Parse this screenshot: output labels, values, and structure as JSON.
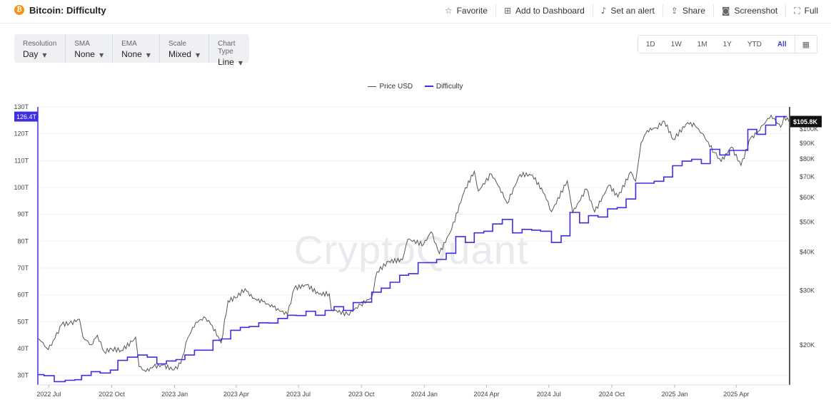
{
  "header": {
    "brand_icon": "bitcoin-icon",
    "brand_glyph": "₿",
    "title": "Bitcoin: Difficulty",
    "actions": [
      {
        "icon": "star-icon",
        "glyph": "☆",
        "label": "Favorite"
      },
      {
        "icon": "dashboard-add-icon",
        "glyph": "⊞",
        "label": "Add to Dashboard"
      },
      {
        "icon": "bell-icon",
        "glyph": "♪",
        "label": "Set an alert"
      },
      {
        "icon": "share-icon",
        "glyph": "⇪",
        "label": "Share"
      },
      {
        "icon": "camera-icon",
        "glyph": "◙",
        "label": "Screenshot"
      },
      {
        "icon": "fullscreen-icon",
        "glyph": "⛶",
        "label": "Full"
      }
    ]
  },
  "controls": [
    {
      "label": "Resolution",
      "value": "Day"
    },
    {
      "label": "SMA",
      "value": "None"
    },
    {
      "label": "EMA",
      "value": "None"
    },
    {
      "label": "Scale",
      "value": "Mixed"
    },
    {
      "label": "Chart Type",
      "value": "Line"
    }
  ],
  "ranges": {
    "items": [
      "1D",
      "1W",
      "1M",
      "1Y",
      "YTD",
      "All"
    ],
    "active": "All",
    "calendar_icon": "calendar-icon"
  },
  "watermark": "CryptoQuant",
  "colors": {
    "price": "#555555",
    "difficulty": "#3d2fe0",
    "badge": "#3d2fe0"
  },
  "chart_data": {
    "type": "line",
    "legend": [
      "Price USD",
      "Difficulty"
    ],
    "legend_position": "top-center",
    "x_ticks": [
      "2022 Jul",
      "2022 Oct",
      "2023 Jan",
      "2023 Apr",
      "2023 Jul",
      "2023 Oct",
      "2024 Jan",
      "2024 Apr",
      "2024 Jul",
      "2024 Oct",
      "2025 Jan",
      "2025 Apr"
    ],
    "x_range": [
      "2022-06-15",
      "2025-06-17"
    ],
    "left_axis": {
      "ticks": [
        "30T",
        "40T",
        "50T",
        "60T",
        "70T",
        "80T",
        "90T",
        "100T",
        "110T",
        "120T",
        "130T"
      ],
      "ylim": [
        27,
        130
      ],
      "unit": "T",
      "current_value_label": "126.4T"
    },
    "right_axis": {
      "scale": "log",
      "ticks": [
        "$20K",
        "$30K",
        "$40K",
        "$50K",
        "$60K",
        "$70K",
        "$80K",
        "$90K",
        "$100K"
      ],
      "ylim": [
        15000,
        118000
      ],
      "current_value_label": "$105.8K"
    },
    "grid": "horizontal",
    "series": [
      {
        "name": "Difficulty",
        "axis": "left",
        "step": true,
        "points": [
          [
            "2022-06-15",
            30.3
          ],
          [
            "2022-06-24",
            29.9
          ],
          [
            "2022-07-09",
            27.7
          ],
          [
            "2022-07-25",
            28.2
          ],
          [
            "2022-08-08",
            28.4
          ],
          [
            "2022-08-18",
            30.0
          ],
          [
            "2022-09-01",
            31.4
          ],
          [
            "2022-09-14",
            30.9
          ],
          [
            "2022-09-29",
            32.0
          ],
          [
            "2022-10-10",
            35.6
          ],
          [
            "2022-10-24",
            36.8
          ],
          [
            "2022-11-08",
            37.6
          ],
          [
            "2022-11-22",
            36.8
          ],
          [
            "2022-12-06",
            34.3
          ],
          [
            "2022-12-20",
            35.4
          ],
          [
            "2023-01-03",
            35.9
          ],
          [
            "2023-01-16",
            37.6
          ],
          [
            "2023-01-30",
            39.4
          ],
          [
            "2023-02-12",
            39.4
          ],
          [
            "2023-02-26",
            43.1
          ],
          [
            "2023-03-10",
            43.6
          ],
          [
            "2023-03-24",
            46.8
          ],
          [
            "2023-04-07",
            47.9
          ],
          [
            "2023-04-20",
            48.2
          ],
          [
            "2023-05-04",
            49.6
          ],
          [
            "2023-05-18",
            49.5
          ],
          [
            "2023-06-01",
            51.2
          ],
          [
            "2023-06-15",
            52.4
          ],
          [
            "2023-06-28",
            52.3
          ],
          [
            "2023-07-12",
            53.9
          ],
          [
            "2023-07-26",
            52.4
          ],
          [
            "2023-08-09",
            54.2
          ],
          [
            "2023-08-22",
            55.6
          ],
          [
            "2023-09-05",
            54.2
          ],
          [
            "2023-09-19",
            57.1
          ],
          [
            "2023-10-02",
            57.3
          ],
          [
            "2023-10-16",
            61.0
          ],
          [
            "2023-10-30",
            62.5
          ],
          [
            "2023-11-12",
            64.7
          ],
          [
            "2023-11-26",
            67.3
          ],
          [
            "2023-12-09",
            67.9
          ],
          [
            "2023-12-23",
            72.0
          ],
          [
            "2024-01-06",
            72.0
          ],
          [
            "2024-01-19",
            73.2
          ],
          [
            "2024-02-02",
            75.5
          ],
          [
            "2024-02-16",
            81.7
          ],
          [
            "2024-03-01",
            79.5
          ],
          [
            "2024-03-14",
            83.1
          ],
          [
            "2024-03-28",
            83.7
          ],
          [
            "2024-04-10",
            86.4
          ],
          [
            "2024-04-24",
            88.1
          ],
          [
            "2024-05-09",
            83.1
          ],
          [
            "2024-05-23",
            84.4
          ],
          [
            "2024-06-06",
            84.1
          ],
          [
            "2024-06-19",
            83.7
          ],
          [
            "2024-07-05",
            79.5
          ],
          [
            "2024-07-19",
            82.0
          ],
          [
            "2024-08-01",
            90.7
          ],
          [
            "2024-08-15",
            86.8
          ],
          [
            "2024-08-28",
            89.5
          ],
          [
            "2024-09-11",
            89.0
          ],
          [
            "2024-09-25",
            92.0
          ],
          [
            "2024-10-09",
            92.5
          ],
          [
            "2024-10-22",
            95.7
          ],
          [
            "2024-11-05",
            101.6
          ],
          [
            "2024-11-18",
            101.6
          ],
          [
            "2024-12-02",
            102.3
          ],
          [
            "2024-12-16",
            103.9
          ],
          [
            "2024-12-29",
            108.1
          ],
          [
            "2025-01-12",
            109.8
          ],
          [
            "2025-01-26",
            110.5
          ],
          [
            "2025-02-09",
            108.9
          ],
          [
            "2025-02-22",
            114.2
          ],
          [
            "2025-03-08",
            112.1
          ],
          [
            "2025-03-22",
            113.8
          ],
          [
            "2025-04-04",
            113.8
          ],
          [
            "2025-04-18",
            121.6
          ],
          [
            "2025-05-01",
            119.8
          ],
          [
            "2025-05-14",
            123.2
          ],
          [
            "2025-05-29",
            126.4
          ],
          [
            "2025-06-14",
            126.4
          ]
        ]
      },
      {
        "name": "Price USD",
        "axis": "right",
        "points": [
          [
            "2022-06-15",
            21000
          ],
          [
            "2022-06-20",
            20500
          ],
          [
            "2022-06-30",
            19300
          ],
          [
            "2022-07-10",
            21000
          ],
          [
            "2022-07-20",
            23300
          ],
          [
            "2022-07-31",
            23500
          ],
          [
            "2022-08-10",
            23800
          ],
          [
            "2022-08-15",
            24200
          ],
          [
            "2022-08-20",
            21200
          ],
          [
            "2022-09-01",
            20000
          ],
          [
            "2022-09-10",
            21500
          ],
          [
            "2022-09-20",
            19000
          ],
          [
            "2022-10-01",
            19400
          ],
          [
            "2022-10-15",
            19200
          ],
          [
            "2022-10-31",
            20500
          ],
          [
            "2022-11-05",
            21200
          ],
          [
            "2022-11-10",
            17000
          ],
          [
            "2022-11-20",
            16400
          ],
          [
            "2022-12-01",
            17000
          ],
          [
            "2022-12-15",
            17200
          ],
          [
            "2022-12-31",
            16600
          ],
          [
            "2023-01-10",
            17400
          ],
          [
            "2023-01-20",
            21000
          ],
          [
            "2023-02-01",
            23700
          ],
          [
            "2023-02-15",
            24500
          ],
          [
            "2023-02-25",
            23100
          ],
          [
            "2023-03-10",
            20300
          ],
          [
            "2023-03-20",
            27800
          ],
          [
            "2023-03-31",
            28400
          ],
          [
            "2023-04-14",
            30400
          ],
          [
            "2023-04-25",
            28300
          ],
          [
            "2023-05-10",
            27600
          ],
          [
            "2023-05-25",
            26500
          ],
          [
            "2023-06-15",
            25100
          ],
          [
            "2023-06-25",
            30500
          ],
          [
            "2023-07-13",
            31300
          ],
          [
            "2023-07-31",
            29200
          ],
          [
            "2023-08-15",
            29300
          ],
          [
            "2023-08-18",
            26100
          ],
          [
            "2023-09-11",
            25100
          ],
          [
            "2023-09-30",
            27000
          ],
          [
            "2023-10-16",
            28500
          ],
          [
            "2023-10-24",
            34500
          ],
          [
            "2023-11-10",
            37300
          ],
          [
            "2023-11-30",
            37700
          ],
          [
            "2023-12-08",
            44000
          ],
          [
            "2023-12-31",
            42300
          ],
          [
            "2024-01-11",
            46500
          ],
          [
            "2024-01-23",
            39500
          ],
          [
            "2024-02-10",
            47500
          ],
          [
            "2024-02-28",
            62500
          ],
          [
            "2024-03-14",
            73000
          ],
          [
            "2024-03-20",
            63000
          ],
          [
            "2024-04-08",
            71600
          ],
          [
            "2024-04-20",
            64800
          ],
          [
            "2024-05-01",
            57500
          ],
          [
            "2024-05-20",
            71300
          ],
          [
            "2024-06-07",
            71000
          ],
          [
            "2024-06-25",
            61500
          ],
          [
            "2024-07-05",
            54000
          ],
          [
            "2024-07-28",
            68000
          ],
          [
            "2024-08-05",
            53700
          ],
          [
            "2024-08-25",
            64000
          ],
          [
            "2024-09-06",
            53900
          ],
          [
            "2024-09-27",
            65800
          ],
          [
            "2024-10-10",
            60300
          ],
          [
            "2024-10-29",
            72700
          ],
          [
            "2024-11-05",
            67800
          ],
          [
            "2024-11-13",
            90500
          ],
          [
            "2024-11-22",
            99000
          ],
          [
            "2024-12-05",
            101000
          ],
          [
            "2024-12-17",
            106100
          ],
          [
            "2024-12-30",
            92500
          ],
          [
            "2025-01-20",
            105000
          ],
          [
            "2025-01-31",
            102400
          ],
          [
            "2025-02-10",
            97000
          ],
          [
            "2025-02-28",
            84000
          ],
          [
            "2025-03-10",
            78600
          ],
          [
            "2025-03-25",
            87500
          ],
          [
            "2025-04-08",
            76300
          ],
          [
            "2025-04-22",
            93500
          ],
          [
            "2025-05-01",
            96500
          ],
          [
            "2025-05-10",
            103000
          ],
          [
            "2025-05-22",
            111000
          ],
          [
            "2025-06-05",
            101500
          ],
          [
            "2025-06-10",
            110000
          ],
          [
            "2025-06-17",
            105800
          ]
        ]
      }
    ]
  }
}
